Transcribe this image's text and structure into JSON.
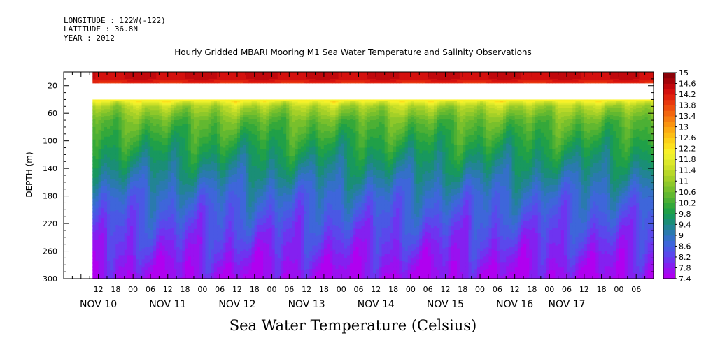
{
  "meta": {
    "longitude": "LONGITUDE : 122W(-122)",
    "latitude": "LATITUDE : 36.8N",
    "year": "YEAR : 2012"
  },
  "title": "Hourly Gridded MBARI Mooring M1 Sea Water Temperature and Salinity Observations",
  "footer": "Sea Water Temperature (Celsius)",
  "chart_data": {
    "type": "heatmap",
    "title": "Hourly Gridded MBARI Mooring M1 Sea Water Temperature and Salinity Observations",
    "xlabel": "",
    "ylabel": "DEPTH (m)",
    "colorbar_label": "Sea Water Temperature (Celsius)",
    "xlim_hours": [
      0,
      204
    ],
    "x_start_label": "NOV 10 00",
    "ylim": [
      300,
      0
    ],
    "data_start_hour": 10,
    "y_ticks": [
      20,
      60,
      100,
      140,
      180,
      220,
      260,
      300
    ],
    "x_hour_ticks": [
      {
        "hour": 12,
        "label": "12"
      },
      {
        "hour": 18,
        "label": "18"
      },
      {
        "hour": 24,
        "label": "00"
      },
      {
        "hour": 30,
        "label": "06"
      },
      {
        "hour": 36,
        "label": "12"
      },
      {
        "hour": 42,
        "label": "18"
      },
      {
        "hour": 48,
        "label": "00"
      },
      {
        "hour": 54,
        "label": "06"
      },
      {
        "hour": 60,
        "label": "12"
      },
      {
        "hour": 66,
        "label": "18"
      },
      {
        "hour": 72,
        "label": "00"
      },
      {
        "hour": 78,
        "label": "06"
      },
      {
        "hour": 84,
        "label": "12"
      },
      {
        "hour": 90,
        "label": "18"
      },
      {
        "hour": 96,
        "label": "00"
      },
      {
        "hour": 102,
        "label": "06"
      },
      {
        "hour": 108,
        "label": "12"
      },
      {
        "hour": 114,
        "label": "18"
      },
      {
        "hour": 120,
        "label": "00"
      },
      {
        "hour": 126,
        "label": "06"
      },
      {
        "hour": 132,
        "label": "12"
      },
      {
        "hour": 138,
        "label": "18"
      },
      {
        "hour": 144,
        "label": "00"
      },
      {
        "hour": 150,
        "label": "06"
      },
      {
        "hour": 156,
        "label": "12"
      },
      {
        "hour": 162,
        "label": "18"
      },
      {
        "hour": 168,
        "label": "00"
      },
      {
        "hour": 174,
        "label": "06"
      },
      {
        "hour": 180,
        "label": "12"
      },
      {
        "hour": 186,
        "label": "18"
      },
      {
        "hour": 192,
        "label": "00"
      },
      {
        "hour": 198,
        "label": "06"
      }
    ],
    "x_day_labels": [
      {
        "hour": 12,
        "label": "NOV 10"
      },
      {
        "hour": 36,
        "label": "NOV 11"
      },
      {
        "hour": 60,
        "label": "NOV 12"
      },
      {
        "hour": 84,
        "label": "NOV 13"
      },
      {
        "hour": 108,
        "label": "NOV 14"
      },
      {
        "hour": 132,
        "label": "NOV 15"
      },
      {
        "hour": 156,
        "label": "NOV 16"
      },
      {
        "hour": 174,
        "label": "NOV 17"
      }
    ],
    "colorbar": {
      "levels": [
        7.4,
        7.6,
        7.8,
        8.0,
        8.2,
        8.4,
        8.6,
        8.8,
        9.0,
        9.2,
        9.4,
        9.6,
        9.8,
        10.0,
        10.2,
        10.4,
        10.6,
        10.8,
        11.0,
        11.2,
        11.4,
        11.6,
        11.8,
        12.0,
        12.2,
        12.4,
        12.6,
        12.8,
        13.0,
        13.2,
        13.4,
        13.6,
        13.8,
        14.0,
        14.2,
        14.4,
        14.6,
        14.8,
        15.0
      ],
      "labels": [
        "7.4",
        "7.8",
        "8.2",
        "8.6",
        "9",
        "9.4",
        "9.8",
        "10.2",
        "10.6",
        "11",
        "11.4",
        "11.8",
        "12.2",
        "12.6",
        "13",
        "13.4",
        "13.8",
        "14.2",
        "14.6",
        "15"
      ],
      "colors": [
        "#b000f0",
        "#9a10f0",
        "#8420f0",
        "#6e34f0",
        "#5a48ec",
        "#4a58e4",
        "#3e66da",
        "#3470c8",
        "#2a7aae",
        "#228494",
        "#1a8e76",
        "#18985e",
        "#20a048",
        "#34a83a",
        "#4cb034",
        "#62b830",
        "#78c02c",
        "#8ec82a",
        "#a4d028",
        "#b8d828",
        "#cce028",
        "#dce82a",
        "#ecf02c",
        "#f8f028",
        "#fce01e",
        "#fcd018",
        "#fcbe14",
        "#fcaa12",
        "#fa9410",
        "#f67e10",
        "#f2660f",
        "#ee4e0e",
        "#e8380e",
        "#e0220e",
        "#d4100e",
        "#c0080c",
        "#a4040a",
        "#8a0208"
      ]
    },
    "depth_profile": [
      {
        "depth": 10,
        "temp": 14.4
      },
      {
        "depth": 40,
        "temp": 12.2
      },
      {
        "depth": 50,
        "temp": 11.2
      },
      {
        "depth": 70,
        "temp": 10.5
      },
      {
        "depth": 100,
        "temp": 10.0
      },
      {
        "depth": 140,
        "temp": 9.4
      },
      {
        "depth": 180,
        "temp": 8.8
      },
      {
        "depth": 220,
        "temp": 8.4
      },
      {
        "depth": 260,
        "temp": 8.0
      },
      {
        "depth": 300,
        "temp": 7.6
      }
    ],
    "missing_depth_band": [
      16,
      40
    ]
  }
}
